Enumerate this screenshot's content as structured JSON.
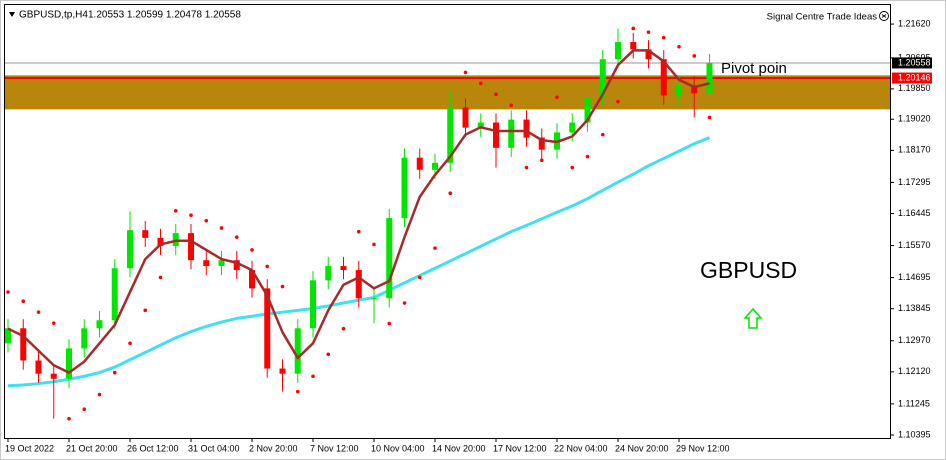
{
  "chart_data": {
    "type": "candlestick",
    "symbol": "GBPUSD,tp,H4",
    "ohlc_text": "1.20553 1.20599 1.20478 1.20558",
    "provider": "Signal Centre Trade Ideas",
    "title": "GBPUSD",
    "annotation": "Pivot poin",
    "categories": [
      "19 Oct 2022",
      null,
      null,
      null,
      "21 Oct 20:00",
      null,
      null,
      null,
      "26 Oct 12:00",
      null,
      null,
      null,
      "31 Oct 04:00",
      null,
      null,
      null,
      "2 Nov 20:00",
      null,
      null,
      null,
      "7 Nov 12:00",
      null,
      null,
      null,
      "10 Nov 04:00",
      null,
      null,
      null,
      "14 Nov 20:00",
      null,
      null,
      null,
      "17 Nov 12:00",
      null,
      null,
      null,
      "22 Nov 04:00",
      null,
      null,
      null,
      "24 Nov 20:00",
      null,
      null,
      null,
      "29 Nov 12:00",
      null,
      null
    ],
    "open": [
      1.129,
      1.1331,
      1.1243,
      1.1207,
      1.1193,
      1.1276,
      1.1331,
      1.1353,
      1.1495,
      1.1599,
      1.1578,
      1.1556,
      1.1591,
      1.1517,
      1.1501,
      1.1517,
      1.149,
      1.144,
      1.1221,
      1.1207,
      1.1331,
      1.1462,
      1.1501,
      1.149,
      1.1413,
      1.1413,
      1.1632,
      1.1797,
      1.1764,
      1.1783,
      1.1934,
      1.1879,
      1.1893,
      1.1824,
      1.1901,
      1.1852,
      1.1819,
      1.1866,
      1.1893,
      1.1962,
      1.2066,
      1.2113,
      1.2093,
      1.2066,
      1.1967,
      1.1995,
      1.1973
    ],
    "high": [
      1.1356,
      1.1356,
      1.1268,
      1.1232,
      1.1301,
      1.1356,
      1.1378,
      1.152,
      1.165,
      1.1624,
      1.1603,
      1.1616,
      1.1616,
      1.1542,
      1.1542,
      1.1542,
      1.1515,
      1.1465,
      1.1246,
      1.1356,
      1.1487,
      1.1526,
      1.1526,
      1.1515,
      1.1438,
      1.1657,
      1.1822,
      1.1822,
      1.1808,
      1.198,
      1.1959,
      1.1918,
      1.1918,
      1.1926,
      1.1926,
      1.1877,
      1.1891,
      1.1918,
      1.1987,
      1.2091,
      1.215,
      1.2138,
      1.2118,
      1.2091,
      1.202,
      1.202,
      1.208
    ],
    "low": [
      1.1265,
      1.1218,
      1.1182,
      1.1084,
      1.1168,
      1.1251,
      1.1306,
      1.1328,
      1.147,
      1.1553,
      1.1531,
      1.1531,
      1.1492,
      1.1476,
      1.1476,
      1.1465,
      1.1415,
      1.1196,
      1.1158,
      1.1182,
      1.1306,
      1.1437,
      1.1465,
      1.1388,
      1.1344,
      1.1388,
      1.1607,
      1.1739,
      1.1739,
      1.1758,
      1.1854,
      1.1854,
      1.177,
      1.1799,
      1.1827,
      1.1794,
      1.1794,
      1.1841,
      1.1868,
      1.1937,
      1.2041,
      1.2068,
      1.2041,
      1.1942,
      1.1942,
      1.1907,
      1.1948
    ],
    "close": [
      1.1331,
      1.1243,
      1.1207,
      1.1193,
      1.1276,
      1.1331,
      1.1353,
      1.1495,
      1.1599,
      1.1578,
      1.1556,
      1.1591,
      1.1517,
      1.1501,
      1.1517,
      1.149,
      1.144,
      1.1221,
      1.1207,
      1.1331,
      1.1462,
      1.1501,
      1.149,
      1.1413,
      1.1413,
      1.1632,
      1.1797,
      1.1764,
      1.1783,
      1.1934,
      1.1879,
      1.1893,
      1.1824,
      1.1901,
      1.1852,
      1.1819,
      1.1866,
      1.1893,
      1.1962,
      1.2066,
      1.2113,
      1.2093,
      1.2066,
      1.1967,
      1.1995,
      1.1973,
      1.2055
    ],
    "up_color": "#00e600",
    "down_color": "#ff0000",
    "ma_fast": {
      "color": "#a52a2a",
      "values": [
        1.133,
        1.131,
        1.127,
        1.123,
        1.121,
        1.124,
        1.129,
        1.134,
        1.143,
        1.152,
        1.156,
        1.157,
        1.157,
        1.1545,
        1.152,
        1.151,
        1.149,
        1.142,
        1.132,
        1.125,
        1.129,
        1.138,
        1.145,
        1.147,
        1.144,
        1.146,
        1.158,
        1.169,
        1.175,
        1.18,
        1.186,
        1.188,
        1.187,
        1.187,
        1.187,
        1.1845,
        1.184,
        1.1855,
        1.19,
        1.197,
        1.205,
        1.209,
        1.209,
        1.206,
        1.201,
        1.199,
        1.2
      ]
    },
    "ma_slow": {
      "color": "#40e0f0",
      "values": [
        1.1174,
        1.1176,
        1.118,
        1.1185,
        1.1192,
        1.12,
        1.121,
        1.1225,
        1.1245,
        1.1265,
        1.1285,
        1.1305,
        1.1322,
        1.1336,
        1.1348,
        1.1358,
        1.1364,
        1.137,
        1.1375,
        1.138,
        1.1385,
        1.1392,
        1.14,
        1.1408,
        1.1415,
        1.1435,
        1.1455,
        1.1475,
        1.1495,
        1.1515,
        1.1535,
        1.1555,
        1.1575,
        1.1595,
        1.1612,
        1.163,
        1.1648,
        1.1665,
        1.1685,
        1.1708,
        1.173,
        1.1752,
        1.1775,
        1.1795,
        1.1815,
        1.1835,
        1.1852
      ]
    },
    "sar": {
      "color": "#ff0000",
      "values": [
        1.143,
        1.1405,
        1.1375,
        1.1345,
        1.1084,
        1.111,
        1.115,
        1.121,
        1.129,
        1.138,
        1.147,
        1.1652,
        1.164,
        1.1625,
        1.1605,
        1.158,
        1.1545,
        1.15,
        1.1445,
        1.1158,
        1.12,
        1.126,
        1.133,
        1.1595,
        1.156,
        1.1344,
        1.14,
        1.147,
        1.155,
        1.17,
        1.203,
        1.2,
        1.197,
        1.194,
        1.177,
        1.179,
        1.1962,
        1.177,
        1.18,
        1.186,
        1.195,
        1.215,
        1.214,
        1.2125,
        1.21,
        1.2075,
        1.1907
      ]
    },
    "zone": {
      "color": "#b8860b",
      "values": [
        1.1929,
        1.2022
      ]
    },
    "bid_price": {
      "color": "#9a9a9a",
      "value": 1.20558
    },
    "pivot_price": {
      "color": "#ff0000",
      "value": 1.20146
    },
    "ylim": [
      1.10313,
      1.22141
    ],
    "yticks": [
      {
        "value": 1.2162,
        "label": "1.21620"
      },
      1.20695,
      {
        "value": 1.1985,
        "label": "1.19850"
      },
      {
        "value": 1.1902,
        "label": "1.19020"
      },
      {
        "value": 1.1817,
        "label": "1.18170"
      },
      1.17295,
      1.16445,
      {
        "value": 1.1557,
        "label": "1.15570"
      },
      1.14695,
      1.13845,
      {
        "value": 1.1297,
        "label": "1.12970"
      },
      {
        "value": 1.1212,
        "label": "1.12120"
      },
      1.11245,
      1.10395
    ],
    "grid": false
  }
}
